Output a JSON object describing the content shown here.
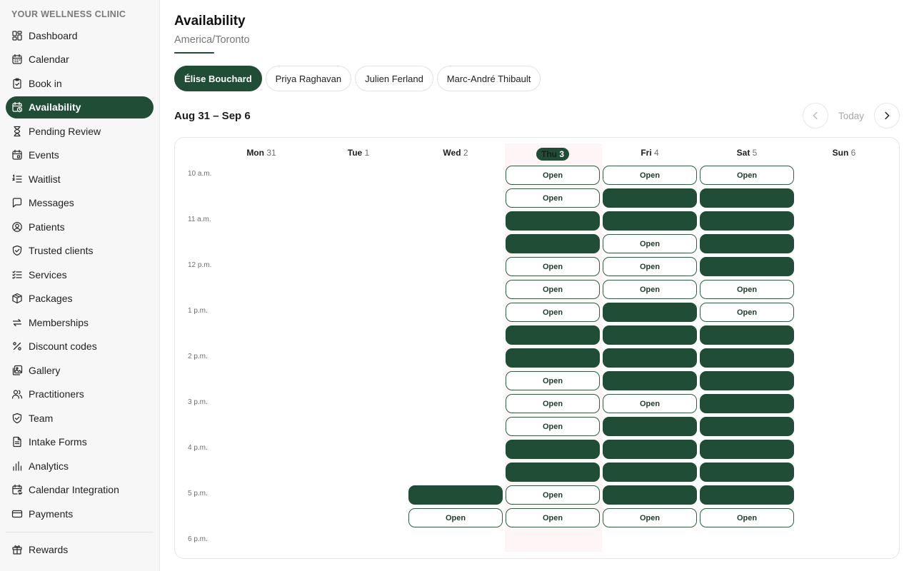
{
  "clinic_name": "YOUR WELLNESS CLINIC",
  "nav": {
    "items": [
      {
        "label": "Dashboard",
        "icon": "dashboard-icon"
      },
      {
        "label": "Calendar",
        "icon": "calendar-icon"
      },
      {
        "label": "Book in",
        "icon": "clipboard-icon"
      },
      {
        "label": "Availability",
        "icon": "calendar-clock-icon",
        "active": true
      },
      {
        "label": "Pending Review",
        "icon": "hourglass-icon"
      },
      {
        "label": "Events",
        "icon": "calendar-event-icon"
      },
      {
        "label": "Waitlist",
        "icon": "list-ordered-icon"
      },
      {
        "label": "Messages",
        "icon": "message-icon"
      },
      {
        "label": "Patients",
        "icon": "user-circle-icon"
      },
      {
        "label": "Trusted clients",
        "icon": "shield-check-icon"
      },
      {
        "label": "Services",
        "icon": "checklist-icon"
      },
      {
        "label": "Packages",
        "icon": "package-icon"
      },
      {
        "label": "Memberships",
        "icon": "repeat-icon"
      },
      {
        "label": "Discount codes",
        "icon": "percent-icon"
      },
      {
        "label": "Gallery",
        "icon": "gallery-icon"
      },
      {
        "label": "Practitioners",
        "icon": "users-icon"
      },
      {
        "label": "Team",
        "icon": "shield-icon"
      },
      {
        "label": "Intake Forms",
        "icon": "document-icon"
      },
      {
        "label": "Analytics",
        "icon": "bar-chart-icon"
      },
      {
        "label": "Calendar Integration",
        "icon": "calendar-sync-icon"
      },
      {
        "label": "Payments",
        "icon": "credit-card-icon"
      }
    ],
    "footer_items": [
      {
        "label": "Rewards",
        "icon": "gift-icon"
      }
    ]
  },
  "page": {
    "title": "Availability",
    "timezone": "America/Toronto"
  },
  "practitioners": [
    {
      "name": "Élise Bouchard",
      "active": true
    },
    {
      "name": "Priya Raghavan"
    },
    {
      "name": "Julien Ferland"
    },
    {
      "name": "Marc-André Thibault"
    }
  ],
  "calendar": {
    "range": "Aug 31 – Sep 6",
    "today_label": "Today",
    "days": [
      {
        "name": "Mon",
        "num": "31"
      },
      {
        "name": "Tue",
        "num": "1"
      },
      {
        "name": "Wed",
        "num": "2"
      },
      {
        "name": "Thu",
        "num": "3",
        "today": true
      },
      {
        "name": "Fri",
        "num": "4"
      },
      {
        "name": "Sat",
        "num": "5"
      },
      {
        "name": "Sun",
        "num": "6"
      }
    ],
    "time_labels": [
      "10 a.m.",
      "11 a.m.",
      "12 p.m.",
      "1 p.m.",
      "2 p.m.",
      "3 p.m.",
      "4 p.m.",
      "5 p.m.",
      "6 p.m."
    ],
    "open_label": "Open",
    "colors": {
      "accent": "#1f4d35",
      "today_bg": "#fdf5f6"
    },
    "slots": {
      "Wed": [
        "",
        "",
        "",
        "",
        "",
        "",
        "",
        "",
        "",
        "",
        "",
        "",
        "",
        "",
        "B",
        "O"
      ],
      "Thu": [
        "O",
        "O",
        "B",
        "B",
        "O",
        "O",
        "O",
        "B",
        "B",
        "O",
        "O",
        "O",
        "B",
        "B",
        "O",
        "O"
      ],
      "Fri": [
        "O",
        "B",
        "B",
        "O",
        "O",
        "O",
        "B",
        "B",
        "B",
        "B",
        "O",
        "B",
        "B",
        "B",
        "B",
        "O"
      ],
      "Sat": [
        "O",
        "B",
        "B",
        "B",
        "B",
        "O",
        "O",
        "B",
        "B",
        "B",
        "B",
        "B",
        "B",
        "B",
        "B",
        "O"
      ]
    }
  }
}
